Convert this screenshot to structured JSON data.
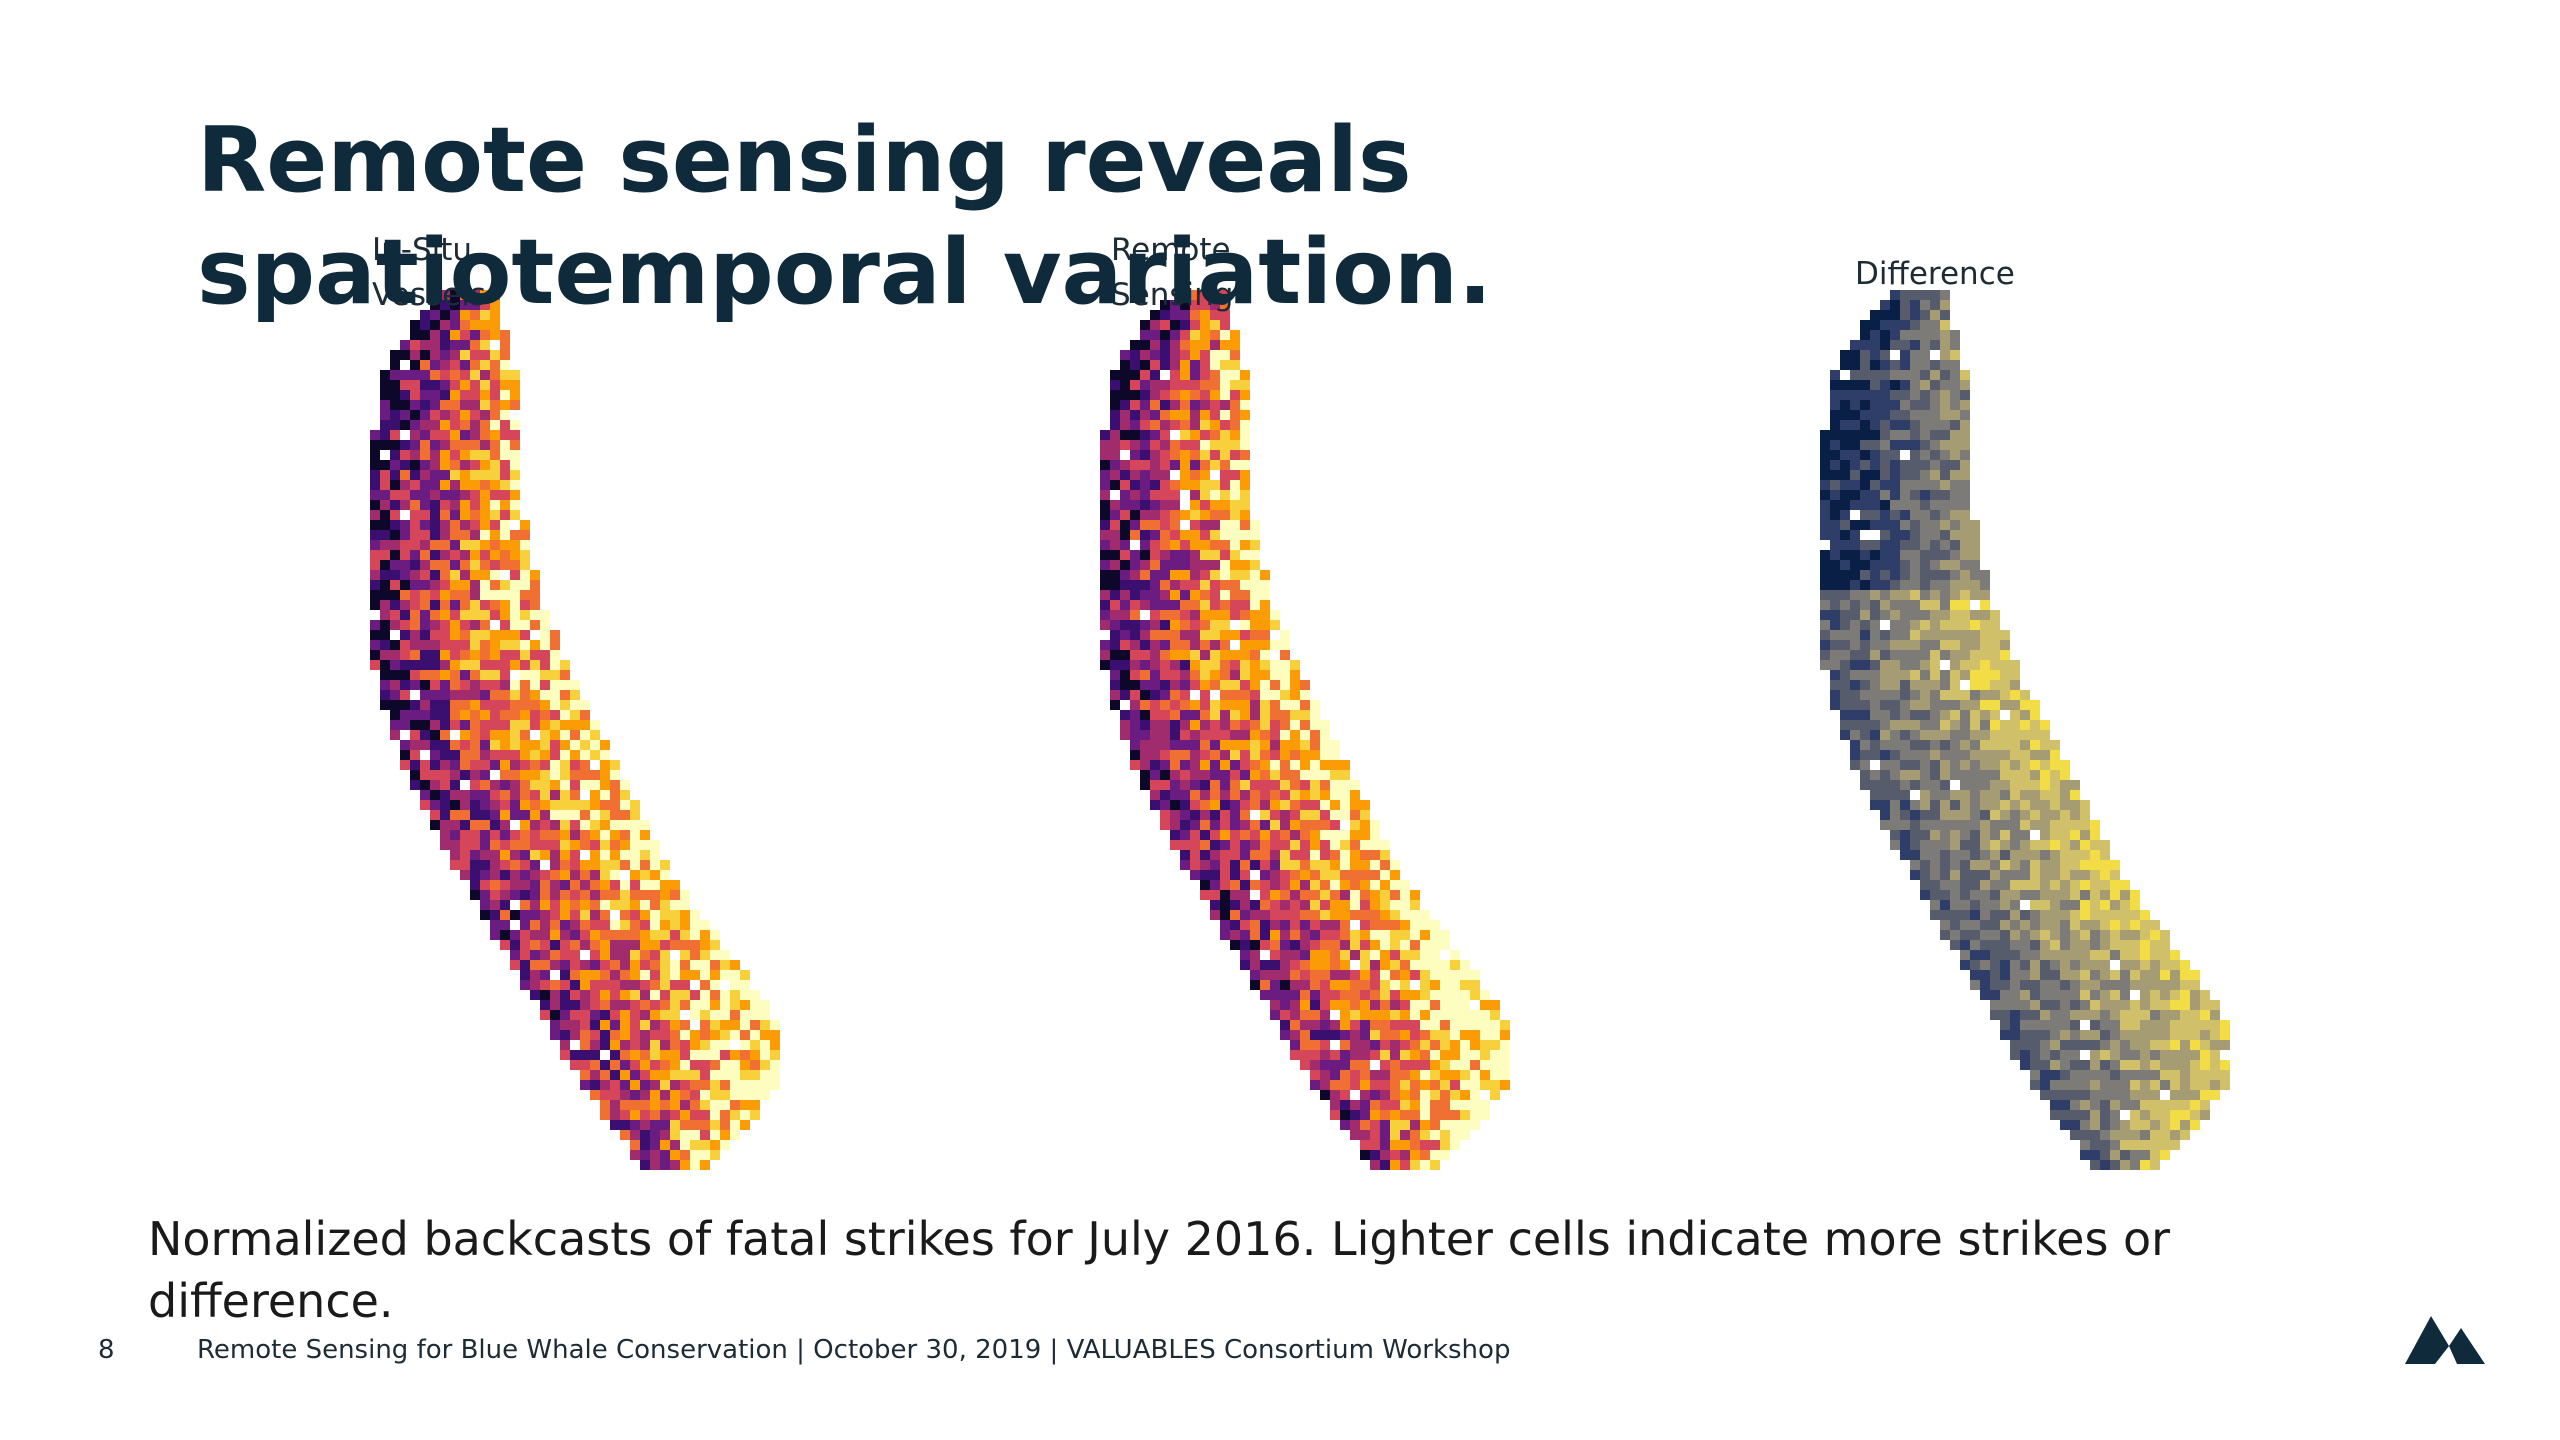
{
  "slide": {
    "title": "Remote sensing reveals spatiotemporal variation.",
    "panels": [
      {
        "label": "In-Situ Vessels",
        "palette": "inferno"
      },
      {
        "label": "Remote Sensing",
        "palette": "inferno"
      },
      {
        "label": "Difference",
        "palette": "cividis"
      }
    ],
    "caption": "Normalized backcasts of fatal strikes for July 2016. Lighter cells indicate more strikes or difference.",
    "footer": {
      "page_number": "8",
      "text": "Remote Sensing for Blue Whale Conservation | October 30, 2019 | VALUABLES Consortium Workshop"
    },
    "logo_icon": "mountain-logo-icon",
    "colors": {
      "title": "#0e2a3b",
      "inferno": [
        "#0d0829",
        "#3b0f70",
        "#6a1c81",
        "#a02c6d",
        "#d6465a",
        "#f06f32",
        "#fb9b06",
        "#f7d03c",
        "#fcfdbf"
      ],
      "cividis": [
        "#0a1f45",
        "#2e3e68",
        "#575c6d",
        "#7c7b78",
        "#a59c74",
        "#d1c06a",
        "#f2dd46"
      ]
    }
  }
}
